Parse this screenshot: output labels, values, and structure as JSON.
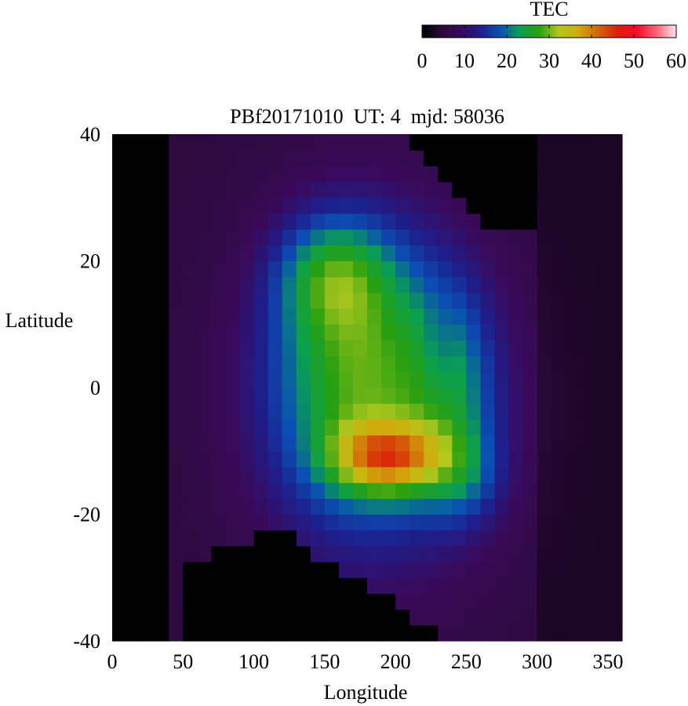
{
  "chart_data": {
    "type": "heatmap",
    "title": "PBf20171010  UT: 4  mjd: 58036",
    "xlabel": "Longitude",
    "ylabel": "Latitude",
    "xlim": [
      0,
      360
    ],
    "ylim": [
      -40,
      40
    ],
    "xticks": [
      "0",
      "50",
      "100",
      "150",
      "200",
      "250",
      "300",
      "350"
    ],
    "yticks": [
      "40",
      "20",
      "0",
      "-20",
      "-40"
    ],
    "grid": false,
    "colorbar": {
      "label": "TEC",
      "range": [
        0,
        60
      ],
      "ticks": [
        "0",
        "10",
        "20",
        "30",
        "40",
        "50",
        "60"
      ],
      "placement": "top-right",
      "colors": [
        "#000000",
        "#2a0a3a",
        "#3a0a5a",
        "#1e1e8c",
        "#0a50b4",
        "#0aa050",
        "#2aa010",
        "#b4c81e",
        "#d2aa0a",
        "#d2640a",
        "#dc1e0a",
        "#ff0a2a",
        "#ff6478",
        "#ffe6e6"
      ]
    },
    "grid_resolution": {
      "lon_step": 10,
      "lat_step": 2.5
    },
    "features": {
      "peak_tec": 44,
      "peak_location": {
        "lon": 195,
        "lat": -11
      },
      "northern_crest": {
        "lon": 160,
        "lat": 19,
        "tec": 33
      },
      "no_data_region": "black areas outside coverage"
    }
  }
}
